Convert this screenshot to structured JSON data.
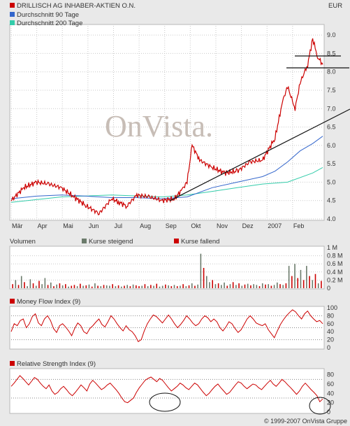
{
  "chart_data": [
    {
      "type": "line",
      "title": "DRILLISCH AG INHABER-AKTIEN O.N.",
      "currency": "EUR",
      "watermark": "OnVista.",
      "x_ticks": [
        "Mär",
        "Apr",
        "Mai",
        "Jun",
        "Jul",
        "Aug",
        "Sep",
        "Okt",
        "Nov",
        "Dez",
        "2007",
        "Jan",
        "Feb"
      ],
      "y_ticks": [
        "9.0",
        "8.5",
        "8.0",
        "7.5",
        "7.0",
        "6.5",
        "6.0",
        "5.5",
        "5.0",
        "4.5",
        "4.0"
      ],
      "ylim": [
        4.0,
        9.25
      ],
      "grid": true,
      "series": [
        {
          "name": "DRILLISCH AG INHABER-AKTIEN O.N.",
          "color": "#cc0000",
          "x": [
            0,
            0.5,
            1,
            1.5,
            2,
            2.5,
            3,
            3.5,
            4,
            4.3,
            4.6,
            5,
            5.5,
            6,
            6.5,
            6.8,
            7,
            7.2,
            7.5,
            8,
            8.5,
            9,
            9.5,
            10,
            10.5,
            10.8,
            11,
            11.3,
            11.5,
            11.8,
            12,
            12.2,
            12.4
          ],
          "values": [
            4.5,
            4.85,
            5.0,
            4.95,
            4.85,
            4.6,
            4.35,
            4.15,
            4.55,
            4.45,
            4.35,
            4.65,
            4.6,
            4.5,
            4.55,
            4.8,
            5.0,
            6.0,
            5.6,
            5.4,
            5.25,
            5.3,
            5.55,
            5.6,
            6.2,
            7.2,
            7.6,
            7.0,
            7.7,
            8.2,
            8.9,
            8.4,
            8.2
          ]
        },
        {
          "name": "Durchschnitt 90 Tage",
          "color": "#3366cc",
          "x": [
            0,
            1,
            2,
            3,
            4,
            5,
            6,
            7,
            8,
            9,
            10,
            10.5,
            11,
            11.5,
            12,
            12.4
          ],
          "values": [
            4.55,
            4.62,
            4.65,
            4.62,
            4.58,
            4.58,
            4.55,
            4.6,
            4.85,
            5.0,
            5.15,
            5.3,
            5.55,
            5.85,
            6.05,
            6.25
          ]
        },
        {
          "name": "Durchschnitt 200 Tage",
          "color": "#33ccaa",
          "x": [
            0,
            2,
            4,
            6,
            7,
            8,
            9,
            10,
            11,
            12,
            12.4
          ],
          "values": [
            4.45,
            4.6,
            4.65,
            4.6,
            4.65,
            4.75,
            4.85,
            4.95,
            5.0,
            5.25,
            5.4
          ]
        }
      ]
    },
    {
      "type": "bar",
      "title": "Volumen",
      "legend": [
        "Kurse steigend",
        "Kurse fallend"
      ],
      "colors": {
        "up": "#6b7b6b",
        "down": "#cc0000"
      },
      "y_ticks": [
        "1 M",
        "0.8 M",
        "0.6 M",
        "0.4 M",
        "0.2 M",
        "0"
      ],
      "ylim": [
        0,
        1.0
      ],
      "note": "Volume values estimated (M shares); one bar per trading day-group",
      "values": [
        0.1,
        0.2,
        0.08,
        0.3,
        0.15,
        0.05,
        0.22,
        0.12,
        0.06,
        0.18,
        0.1,
        0.25,
        0.08,
        0.14,
        0.05,
        0.09,
        0.12,
        0.07,
        0.1,
        0.04,
        0.06,
        0.08,
        0.05,
        0.11,
        0.06,
        0.07,
        0.09,
        0.04,
        0.12,
        0.06,
        0.05,
        0.08,
        0.07,
        0.06,
        0.1,
        0.05,
        0.07,
        0.04,
        0.06,
        0.08,
        0.05,
        0.09,
        0.07,
        0.05,
        0.06,
        0.1,
        0.05,
        0.08,
        0.06,
        0.11,
        0.04,
        0.06,
        0.09,
        0.07,
        0.05,
        0.08,
        0.05,
        0.06,
        0.1,
        0.05,
        0.07,
        0.12,
        0.06,
        0.09,
        0.85,
        0.5,
        0.3,
        0.15,
        0.2,
        0.1,
        0.12,
        0.08,
        0.14,
        0.06,
        0.1,
        0.15,
        0.08,
        0.12,
        0.06,
        0.09,
        0.11,
        0.07,
        0.1,
        0.08,
        0.05,
        0.12,
        0.09,
        0.1,
        0.06,
        0.08,
        0.14,
        0.1,
        0.08,
        0.12,
        0.55,
        0.3,
        0.6,
        0.25,
        0.45,
        0.2,
        0.55,
        0.3,
        0.2,
        0.35,
        0.12,
        0.18
      ],
      "up": [
        0,
        1,
        0,
        1,
        0,
        1,
        1,
        0,
        1,
        0,
        1,
        1,
        0,
        1,
        0,
        1,
        0,
        1,
        0,
        1,
        0,
        0,
        1,
        0,
        1,
        0,
        1,
        0,
        1,
        0,
        1,
        0,
        1,
        1,
        0,
        1,
        0,
        1,
        0,
        1,
        0,
        1,
        0,
        0,
        1,
        0,
        1,
        0,
        1,
        0,
        1,
        1,
        0,
        1,
        0,
        1,
        0,
        1,
        0,
        1,
        0,
        1,
        0,
        1,
        1,
        0,
        1,
        1,
        0,
        1,
        0,
        1,
        1,
        0,
        1,
        0,
        1,
        0,
        1,
        0,
        1,
        0,
        1,
        1,
        0,
        1,
        0,
        1,
        0,
        1,
        1,
        0,
        1,
        0,
        1,
        0,
        1,
        0,
        1,
        0,
        1,
        0,
        1,
        0,
        1,
        0
      ]
    },
    {
      "type": "line",
      "title": "Money Flow Index (9)",
      "color": "#cc0000",
      "y_ticks": [
        "100",
        "80",
        "60",
        "40",
        "20",
        "0"
      ],
      "ylim": [
        0,
        100
      ],
      "reference_lines": [
        20,
        50,
        80
      ],
      "values": [
        40,
        60,
        55,
        68,
        72,
        50,
        60,
        78,
        85,
        62,
        55,
        72,
        80,
        68,
        48,
        38,
        55,
        60,
        52,
        42,
        30,
        48,
        62,
        55,
        40,
        35,
        48,
        55,
        64,
        72,
        58,
        52,
        65,
        80,
        72,
        60,
        50,
        42,
        55,
        45,
        40,
        30,
        15,
        20,
        42,
        60,
        72,
        82,
        78,
        70,
        62,
        72,
        82,
        72,
        60,
        50,
        58,
        68,
        80,
        72,
        62,
        55,
        60,
        72,
        80,
        75,
        65,
        72,
        65,
        50,
        42,
        52,
        65,
        60,
        48,
        38,
        45,
        58,
        72,
        80,
        72,
        62,
        58,
        55,
        60,
        45,
        35,
        25,
        42,
        58,
        70,
        80,
        88,
        95,
        90,
        80,
        72,
        85,
        92,
        80,
        72,
        65,
        68,
        60
      ]
    },
    {
      "type": "line",
      "title": "Relative Strength Index (9)",
      "color": "#cc0000",
      "y_ticks": [
        "80",
        "60",
        "40",
        "20",
        "0"
      ],
      "ylim": [
        0,
        90
      ],
      "reference_lines": [
        30,
        70
      ],
      "values": [
        55,
        62,
        70,
        78,
        72,
        65,
        58,
        66,
        74,
        70,
        62,
        55,
        50,
        58,
        45,
        38,
        42,
        50,
        55,
        48,
        40,
        35,
        42,
        50,
        58,
        52,
        45,
        60,
        68,
        62,
        55,
        48,
        52,
        58,
        62,
        55,
        48,
        40,
        30,
        22,
        20,
        25,
        30,
        42,
        52,
        60,
        68,
        72,
        75,
        70,
        65,
        72,
        68,
        60,
        52,
        45,
        50,
        55,
        62,
        58,
        52,
        48,
        55,
        62,
        58,
        50,
        42,
        35,
        40,
        48,
        55,
        60,
        52,
        45,
        38,
        42,
        50,
        58,
        65,
        62,
        55,
        50,
        55,
        60,
        58,
        52,
        48,
        55,
        62,
        68,
        60,
        55,
        62,
        70,
        65,
        58,
        52,
        45,
        38,
        45,
        55,
        62,
        55,
        48,
        42,
        35,
        22,
        28
      ]
    }
  ],
  "footer": {
    "copyright": "© 1999-2007 OnVista Gruppe"
  }
}
